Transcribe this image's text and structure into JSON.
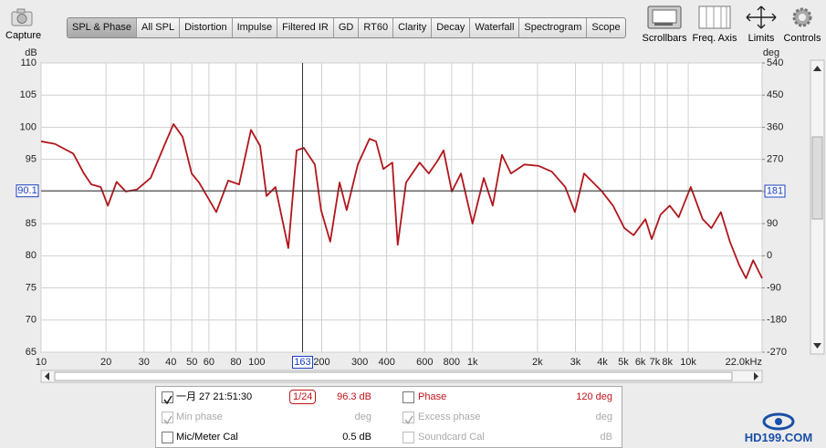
{
  "toolbar": {
    "capture": "Capture",
    "tabs": [
      "SPL & Phase",
      "All SPL",
      "Distortion",
      "Impulse",
      "Filtered IR",
      "GD",
      "RT60",
      "Clarity",
      "Decay",
      "Waterfall",
      "Spectrogram",
      "Scope"
    ],
    "active_tab": 0,
    "tools": [
      "Scrollbars",
      "Freq. Axis",
      "Limits",
      "Controls"
    ]
  },
  "chart_data": {
    "type": "line",
    "y_label": "dB",
    "y2_label": "deg",
    "log_x": true,
    "grid": true,
    "x": [
      10,
      11.6,
      14.1,
      15.8,
      17.1,
      18.9,
      20.4,
      22.4,
      24.7,
      27.8,
      32.2,
      37.2,
      41.1,
      45.3,
      49.9,
      54,
      64.9,
      73.7,
      82.8,
      94,
      103.6,
      110.9,
      122,
      140,
      153,
      165,
      185.8,
      198.6,
      219,
      242,
      261,
      294,
      333,
      357,
      386,
      425,
      450,
      492,
      569,
      627,
      692,
      734,
      802,
      884,
      1000,
      1128,
      1241,
      1369,
      1508,
      1741,
      2018,
      2330,
      2690,
      2983,
      3290,
      3985,
      4480,
      5060,
      5580,
      6330,
      6770,
      7440,
      8210,
      9030,
      10270,
      11660,
      12800,
      14170,
      15600,
      17200,
      18520,
      20000,
      22000
    ],
    "series": [
      {
        "name": "一月 27 21:51:30",
        "color": "#b0161c",
        "values": [
          97.8,
          97.4,
          95.9,
          92.8,
          91.1,
          90.7,
          87.8,
          91.5,
          90,
          90.3,
          92.1,
          97.1,
          100.5,
          98.5,
          92.8,
          91.4,
          86.8,
          91.7,
          91.1,
          99.6,
          97.1,
          89.3,
          90.7,
          81.2,
          96.4,
          96.8,
          94.2,
          87.1,
          82.2,
          91.4,
          87.1,
          94.2,
          98.2,
          97.8,
          93.5,
          94.5,
          81.7,
          91.4,
          94.5,
          92.8,
          94.9,
          96.4,
          90,
          92.8,
          85,
          92.1,
          87.8,
          95.7,
          92.8,
          94.2,
          94,
          93.1,
          90.7,
          86.8,
          92.8,
          90,
          87.8,
          84.3,
          83.2,
          85.7,
          82.6,
          86.4,
          87.8,
          86,
          90.7,
          85.7,
          84.3,
          86.8,
          82.2,
          78.6,
          76.5,
          79.3,
          76.5
        ]
      }
    ],
    "xlim": [
      10,
      22000
    ],
    "xticks": [
      10,
      20,
      30,
      40,
      50,
      60,
      80,
      100,
      200,
      300,
      400,
      600,
      800,
      {
        "value": 1000,
        "label": "1k"
      },
      {
        "value": 2000,
        "label": "2k"
      },
      {
        "value": 3000,
        "label": "3k"
      },
      {
        "value": 4000,
        "label": "4k"
      },
      {
        "value": 5000,
        "label": "5k"
      },
      {
        "value": 6000,
        "label": "6k"
      },
      {
        "value": 7000,
        "label": "7k"
      },
      {
        "value": 8000,
        "label": "8k"
      },
      {
        "value": 10000,
        "label": "10k"
      },
      {
        "value": 22000,
        "label": "22.0kHz"
      }
    ],
    "ylim": [
      65,
      110
    ],
    "yticks": [
      65,
      70,
      75,
      80,
      85,
      90,
      95,
      100,
      105,
      110
    ],
    "y2lim": [
      -270,
      540
    ],
    "y2ticks": [
      -270,
      -180,
      -90,
      0,
      90,
      180,
      270,
      360,
      450,
      540
    ],
    "cursor": {
      "x": 163,
      "y": 90.1,
      "y2": 181
    }
  },
  "panel": {
    "rows": [
      {
        "smoothing": "1/24",
        "value": "96.3 dB",
        "phase": "Phase",
        "phase_value": "120 deg"
      },
      {
        "name": "Min phase",
        "value": "deg",
        "phase": "Excess phase",
        "phase_value": "deg"
      },
      {
        "name": "Mic/Meter Cal",
        "value": "0.5 dB",
        "phase": "Soundcard Cal",
        "phase_value": "dB"
      }
    ]
  },
  "watermark": "HD199.COM"
}
